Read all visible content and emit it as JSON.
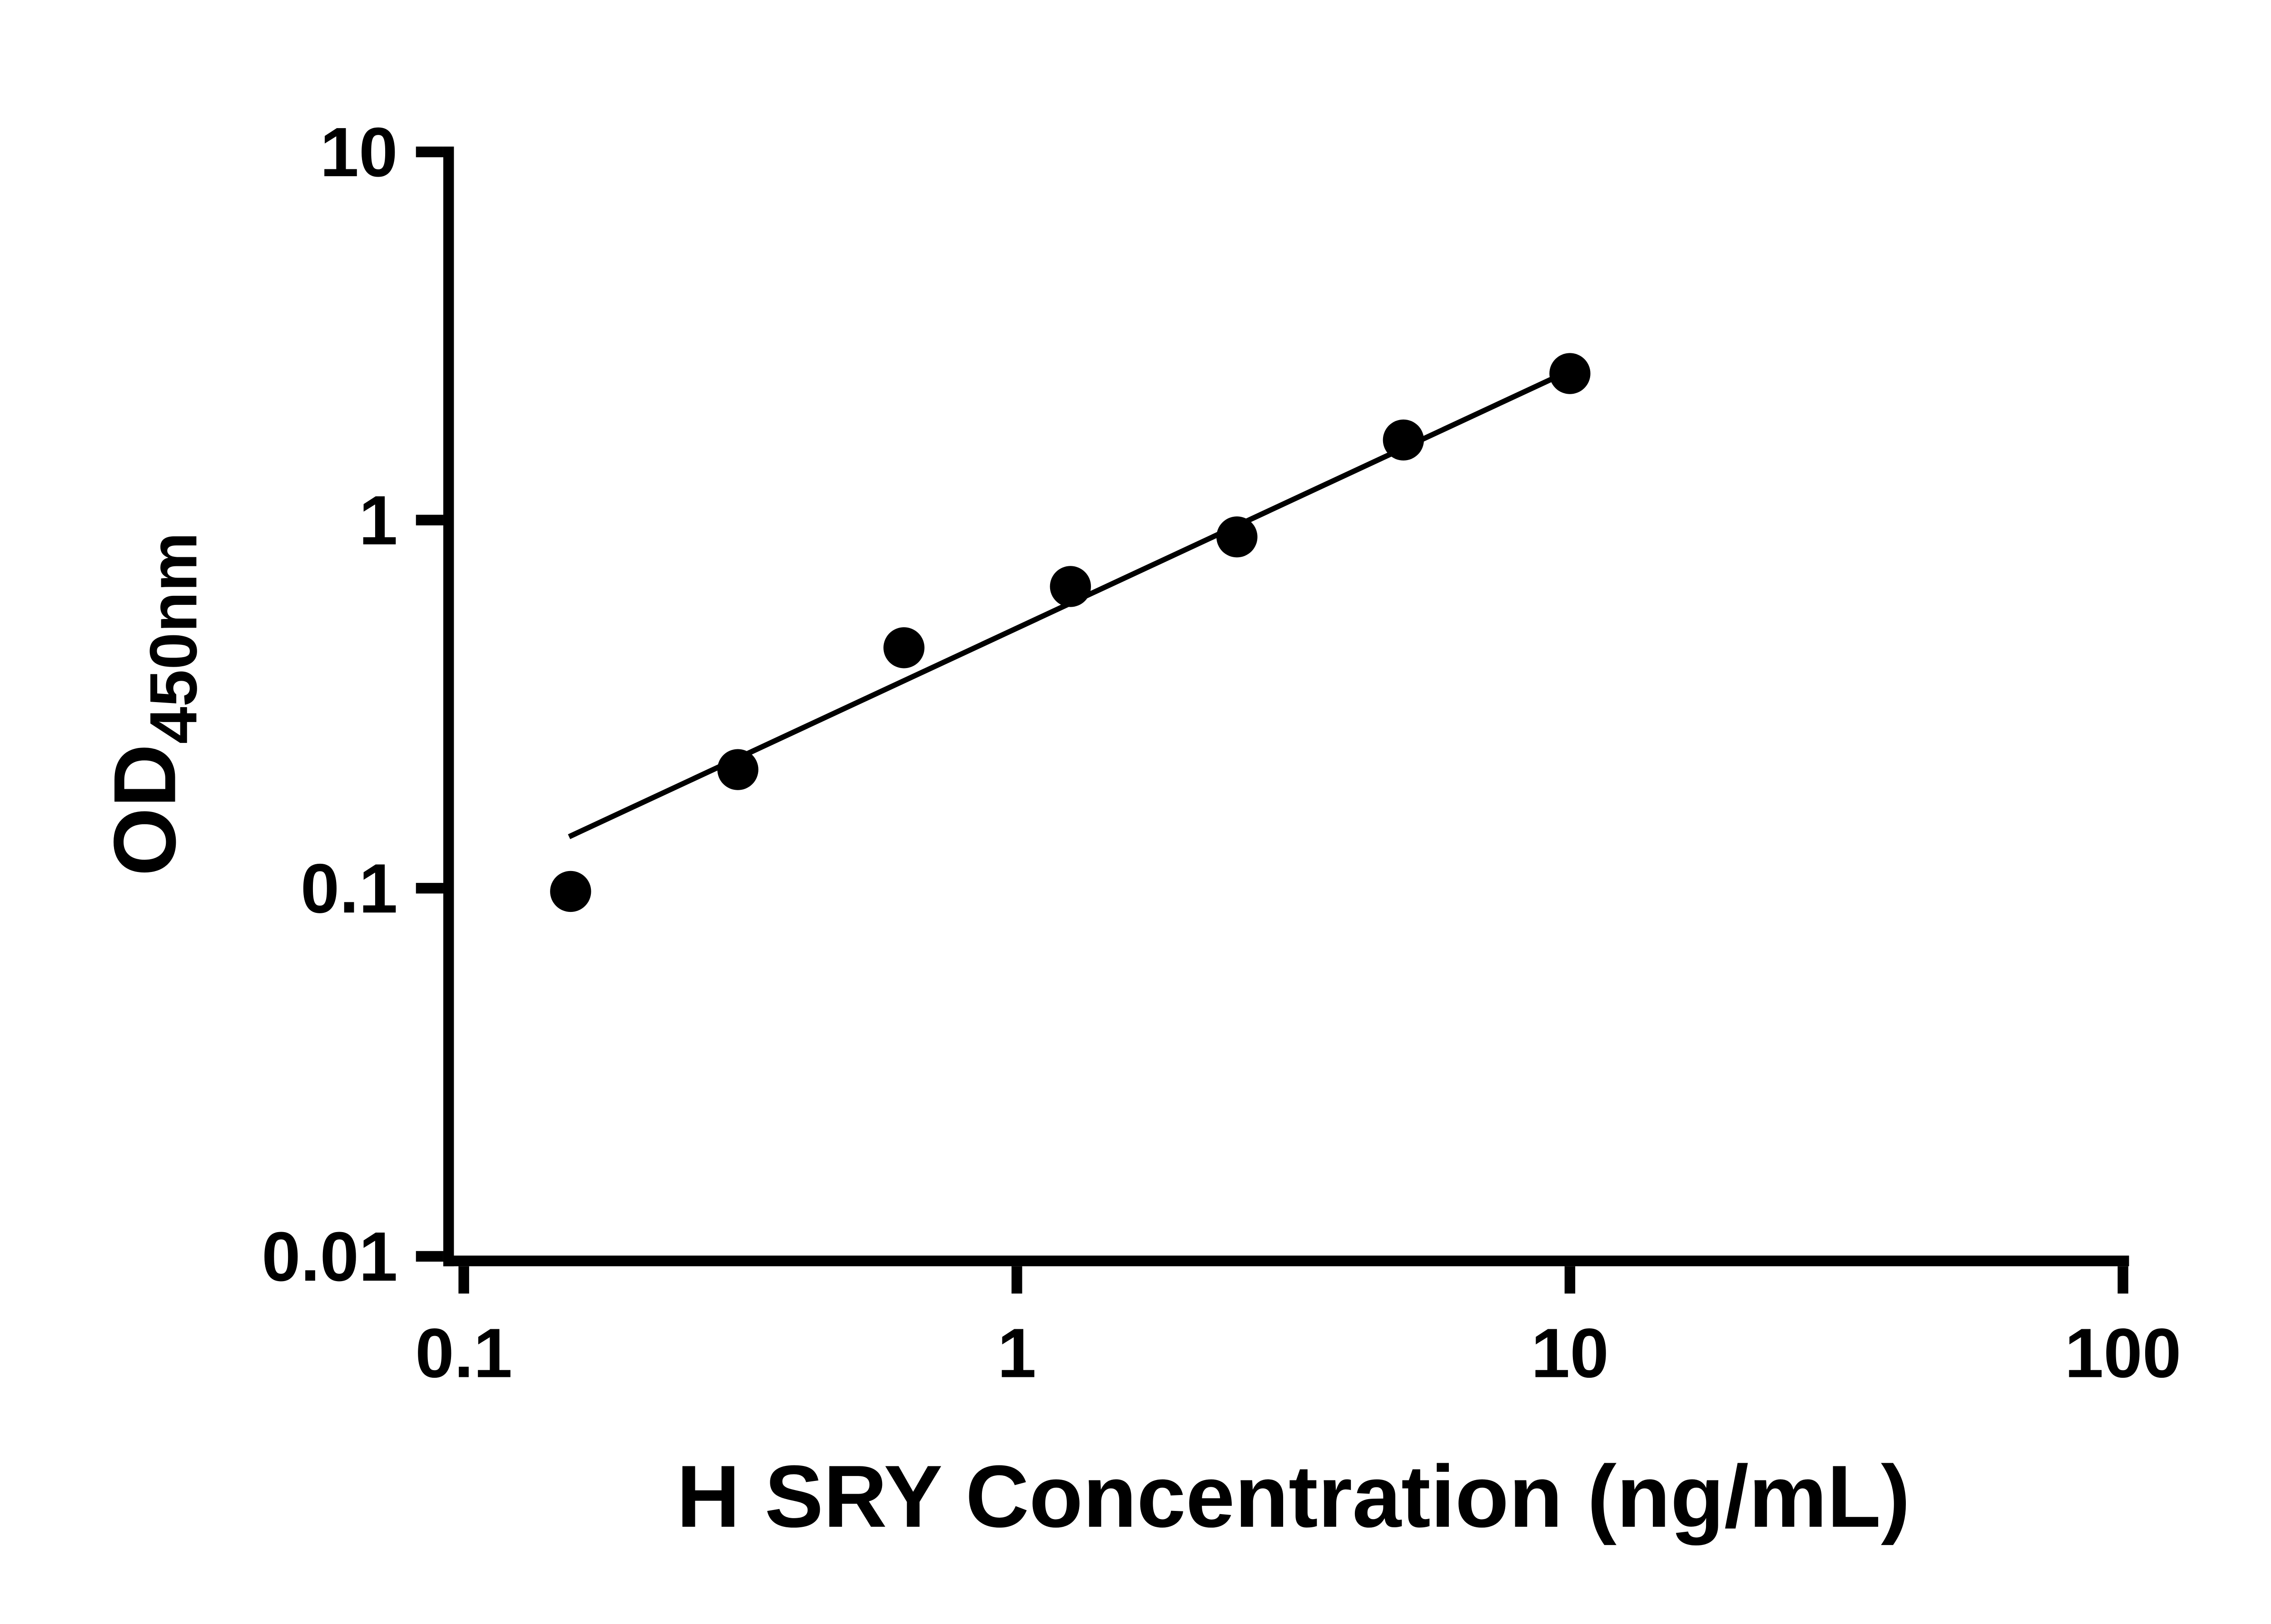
{
  "chart_data": {
    "type": "scatter",
    "title": "",
    "xlabel": "H SRY Concentration (ng/mL)",
    "ylabel_main": "OD",
    "ylabel_sub": "450nm",
    "x_scale": "log",
    "y_scale": "log",
    "xlim": [
      0.1,
      100
    ],
    "ylim": [
      0.01,
      10
    ],
    "grid": false,
    "legend": "none",
    "x_ticks": [
      {
        "value": 0.1,
        "label": "0.1"
      },
      {
        "value": 1,
        "label": "1"
      },
      {
        "value": 10,
        "label": "10"
      },
      {
        "value": 100,
        "label": "100"
      }
    ],
    "y_ticks": [
      {
        "value": 0.01,
        "label": "0.01"
      },
      {
        "value": 0.1,
        "label": "0.1"
      },
      {
        "value": 1,
        "label": "1"
      },
      {
        "value": 10,
        "label": "10"
      }
    ],
    "points": [
      {
        "x": 0.156,
        "y": 0.098
      },
      {
        "x": 0.313,
        "y": 0.21
      },
      {
        "x": 0.625,
        "y": 0.45
      },
      {
        "x": 1.25,
        "y": 0.66
      },
      {
        "x": 2.5,
        "y": 0.9
      },
      {
        "x": 5,
        "y": 1.65
      },
      {
        "x": 10,
        "y": 2.5
      }
    ],
    "trendline": {
      "x1": 0.155,
      "y1": 0.138,
      "x2": 10.3,
      "y2": 2.6
    },
    "colors": {
      "point": "#000000",
      "line": "#000000",
      "axis": "#000000",
      "background": "#ffffff"
    }
  }
}
